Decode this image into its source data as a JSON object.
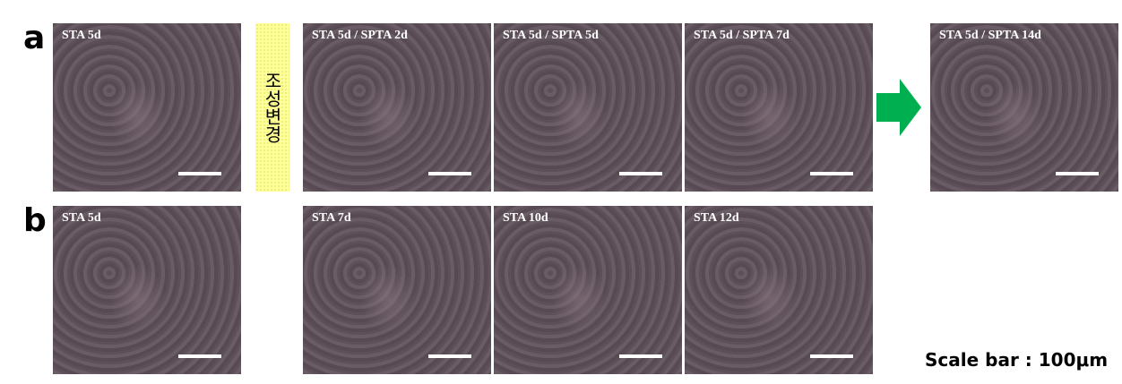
{
  "figure": {
    "rows": [
      {
        "label": "a",
        "panels": [
          "STA 5d",
          "STA 5d / SPTA 2d",
          "STA 5d / SPTA 5d",
          "STA 5d / SPTA 7d",
          "STA 5d / SPTA 14d"
        ],
        "condition_change": "조성변경"
      },
      {
        "label": "b",
        "panels": [
          "STA 5d",
          "STA 7d",
          "STA 10d",
          "STA 12d"
        ]
      }
    ],
    "scale_bar": "Scale bar : 100μm"
  }
}
